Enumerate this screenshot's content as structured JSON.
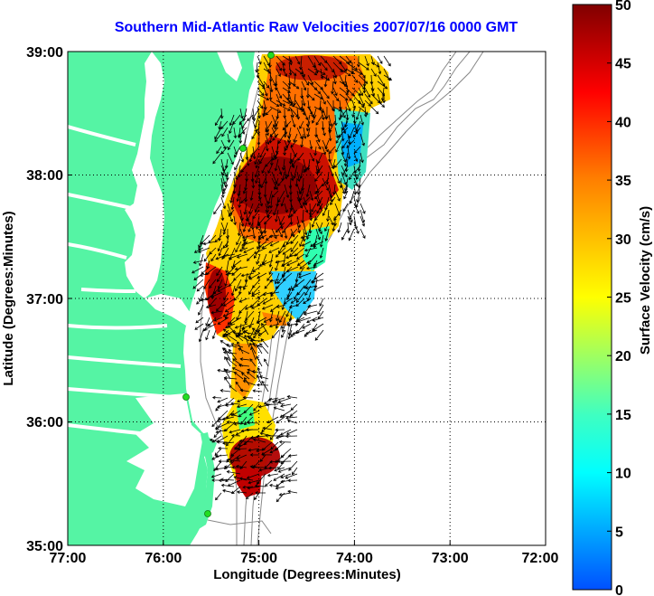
{
  "title": "Southern Mid-Atlantic Raw Velocities 2007/07/16 0000 GMT",
  "x_axis": {
    "label": "Longitude (Degrees:Minutes)",
    "ticks": [
      "77:00",
      "76:00",
      "75:00",
      "74:00",
      "73:00",
      "72:00"
    ]
  },
  "y_axis": {
    "label": "Latitude (Degrees:Minutes)",
    "ticks": [
      "39:00",
      "38:00",
      "37:00",
      "36:00",
      "35:00"
    ]
  },
  "colorbar": {
    "label": "Surface Velocity (cm/s)",
    "ticks": [
      "50",
      "45",
      "40",
      "35",
      "30",
      "25",
      "20",
      "15",
      "10",
      "5",
      "0"
    ],
    "min": 0,
    "max": 50
  },
  "colors": {
    "land": "#55f4a4",
    "title": "#0000ff",
    "station": "#22dd22"
  }
}
